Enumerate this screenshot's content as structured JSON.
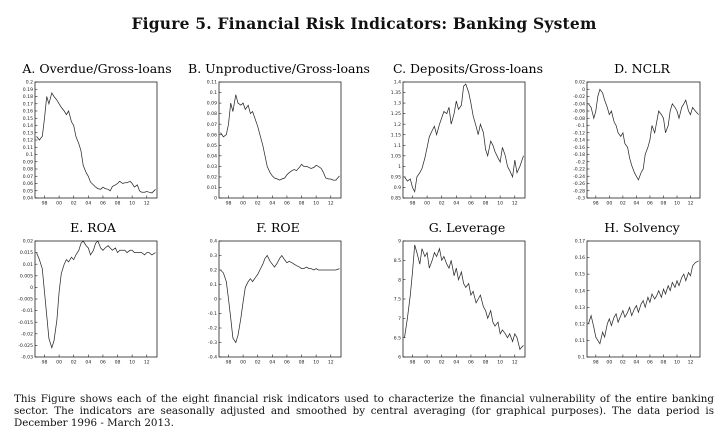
{
  "figure": {
    "title": "Figure 5. Financial Risk Indicators: Banking System",
    "caption": "This Figure shows each of the eight financial risk indicators used to characterize the financial vulnerability of the entire banking sector. The indicators are seasonally adjusted and smoothed by central averaging (for graphical purposes). The data period is December 1996 - March 2013."
  },
  "chart_data": [
    {
      "type": "line",
      "title": "A. Overdue/Gross-loans",
      "ylim": [
        0.04,
        0.2
      ],
      "yticks": [
        "0.2",
        "0.19",
        "0.18",
        "0.17",
        "0.16",
        "0.15",
        "0.14",
        "0.13",
        "0.12",
        "0.11",
        "0.1",
        "0.09",
        "0.08",
        "0.07",
        "0.06",
        "0.05",
        "0.04"
      ],
      "xticks": [
        "98",
        "00",
        "02",
        "04",
        "06",
        "08",
        "10",
        "12"
      ],
      "x": [
        1996.9,
        1997.3,
        1997.7,
        1998.0,
        1998.3,
        1998.6,
        1999.0,
        1999.3,
        1999.7,
        2000.0,
        2000.3,
        2000.7,
        2001.0,
        2001.3,
        2001.7,
        2002.0,
        2002.3,
        2002.7,
        2003.0,
        2003.3,
        2003.7,
        2004.0,
        2004.3,
        2004.7,
        2005.0,
        2005.3,
        2005.7,
        2006.0,
        2006.3,
        2006.7,
        2007.0,
        2007.3,
        2007.7,
        2008.0,
        2008.3,
        2008.7,
        2009.0,
        2009.3,
        2009.7,
        2010.0,
        2010.3,
        2010.7,
        2011.0,
        2011.3,
        2011.7,
        2012.0,
        2012.3,
        2012.7,
        2013.2
      ],
      "series": [
        {
          "values": [
            0.125,
            0.12,
            0.125,
            0.15,
            0.18,
            0.17,
            0.185,
            0.18,
            0.175,
            0.17,
            0.165,
            0.16,
            0.155,
            0.16,
            0.145,
            0.14,
            0.125,
            0.115,
            0.105,
            0.085,
            0.075,
            0.07,
            0.062,
            0.058,
            0.055,
            0.053,
            0.052,
            0.055,
            0.053,
            0.052,
            0.05,
            0.056,
            0.058,
            0.06,
            0.063,
            0.06,
            0.061,
            0.061,
            0.063,
            0.06,
            0.055,
            0.058,
            0.05,
            0.048,
            0.048,
            0.049,
            0.048,
            0.047,
            0.052
          ]
        }
      ]
    },
    {
      "type": "line",
      "title": "B. Unproductive/Gross-loans",
      "ylim": [
        0.0,
        0.11
      ],
      "yticks": [
        "0.11",
        "0.1",
        "0.09",
        "0.08",
        "0.07",
        "0.06",
        "0.05",
        "0.04",
        "0.03",
        "0.02",
        "0.01",
        "0"
      ],
      "xticks": [
        "98",
        "00",
        "02",
        "04",
        "06",
        "08",
        "10",
        "12"
      ],
      "x": [
        1996.9,
        1997.3,
        1997.7,
        1998.0,
        1998.3,
        1998.6,
        1999.0,
        1999.3,
        1999.7,
        2000.0,
        2000.3,
        2000.7,
        2001.0,
        2001.3,
        2001.7,
        2002.0,
        2002.3,
        2002.7,
        2003.0,
        2003.3,
        2003.7,
        2004.0,
        2004.3,
        2004.7,
        2005.0,
        2005.3,
        2005.7,
        2006.0,
        2006.3,
        2006.7,
        2007.0,
        2007.3,
        2007.7,
        2008.0,
        2008.3,
        2008.7,
        2009.0,
        2009.3,
        2009.7,
        2010.0,
        2010.3,
        2010.7,
        2011.0,
        2011.3,
        2011.7,
        2012.0,
        2012.3,
        2012.7,
        2013.2
      ],
      "series": [
        {
          "values": [
            0.062,
            0.058,
            0.06,
            0.07,
            0.09,
            0.082,
            0.098,
            0.09,
            0.088,
            0.09,
            0.084,
            0.088,
            0.08,
            0.082,
            0.074,
            0.068,
            0.06,
            0.05,
            0.04,
            0.03,
            0.024,
            0.021,
            0.019,
            0.018,
            0.017,
            0.018,
            0.019,
            0.022,
            0.024,
            0.026,
            0.027,
            0.026,
            0.029,
            0.032,
            0.03,
            0.03,
            0.029,
            0.028,
            0.029,
            0.031,
            0.03,
            0.028,
            0.024,
            0.019,
            0.018,
            0.018,
            0.017,
            0.017,
            0.021
          ]
        }
      ]
    },
    {
      "type": "line",
      "title": "C. Deposits/Gross-loans",
      "ylim": [
        0.85,
        1.4
      ],
      "yticks": [
        "1.4",
        "1.35",
        "1.3",
        "1.25",
        "1.2",
        "1.15",
        "1.1",
        "1.05",
        "1",
        "0.95",
        "0.9",
        "0.85"
      ],
      "xticks": [
        "98",
        "00",
        "02",
        "04",
        "06",
        "08",
        "10",
        "12"
      ],
      "x": [
        1996.9,
        1997.3,
        1997.7,
        1998.0,
        1998.3,
        1998.6,
        1999.0,
        1999.3,
        1999.7,
        2000.0,
        2000.3,
        2000.7,
        2001.0,
        2001.3,
        2001.7,
        2002.0,
        2002.3,
        2002.7,
        2003.0,
        2003.3,
        2003.7,
        2004.0,
        2004.3,
        2004.7,
        2005.0,
        2005.3,
        2005.7,
        2006.0,
        2006.3,
        2006.7,
        2007.0,
        2007.3,
        2007.7,
        2008.0,
        2008.3,
        2008.7,
        2009.0,
        2009.3,
        2009.7,
        2010.0,
        2010.3,
        2010.7,
        2011.0,
        2011.3,
        2011.7,
        2012.0,
        2012.3,
        2012.7,
        2013.2
      ],
      "series": [
        {
          "values": [
            0.95,
            0.93,
            0.94,
            0.9,
            0.88,
            0.95,
            0.97,
            0.99,
            1.04,
            1.09,
            1.14,
            1.17,
            1.19,
            1.15,
            1.2,
            1.23,
            1.26,
            1.25,
            1.28,
            1.2,
            1.25,
            1.31,
            1.27,
            1.29,
            1.38,
            1.39,
            1.35,
            1.3,
            1.24,
            1.19,
            1.15,
            1.2,
            1.16,
            1.08,
            1.05,
            1.12,
            1.1,
            1.07,
            1.04,
            1.02,
            1.09,
            1.05,
            1.0,
            0.98,
            0.95,
            1.03,
            0.97,
            1.0,
            1.05
          ]
        }
      ]
    },
    {
      "type": "line",
      "title": "D. NCLR",
      "ylim": [
        -0.3,
        0.02
      ],
      "yticks": [
        "0.02",
        "0",
        "-0.02",
        "-0.04",
        "-0.06",
        "-0.08",
        "-0.1",
        "-0.12",
        "-0.14",
        "-0.16",
        "-0.18",
        "-0.2",
        "-0.22",
        "-0.24",
        "-0.26",
        "-0.28",
        "-0.3"
      ],
      "xticks": [
        "98",
        "00",
        "02",
        "04",
        "06",
        "08",
        "10",
        "12"
      ],
      "x": [
        1996.9,
        1997.3,
        1997.7,
        1998.0,
        1998.3,
        1998.6,
        1999.0,
        1999.3,
        1999.7,
        2000.0,
        2000.3,
        2000.7,
        2001.0,
        2001.3,
        2001.7,
        2002.0,
        2002.3,
        2002.7,
        2003.0,
        2003.3,
        2003.7,
        2004.0,
        2004.3,
        2004.7,
        2005.0,
        2005.3,
        2005.7,
        2006.0,
        2006.3,
        2006.7,
        2007.0,
        2007.3,
        2007.7,
        2008.0,
        2008.3,
        2008.7,
        2009.0,
        2009.3,
        2009.7,
        2010.0,
        2010.3,
        2010.7,
        2011.0,
        2011.3,
        2011.7,
        2012.0,
        2012.3,
        2012.7,
        2013.2
      ],
      "series": [
        {
          "values": [
            -0.04,
            -0.05,
            -0.08,
            -0.06,
            -0.02,
            0.0,
            -0.01,
            -0.03,
            -0.05,
            -0.07,
            -0.06,
            -0.09,
            -0.1,
            -0.12,
            -0.13,
            -0.12,
            -0.15,
            -0.16,
            -0.19,
            -0.21,
            -0.23,
            -0.24,
            -0.25,
            -0.23,
            -0.22,
            -0.18,
            -0.16,
            -0.14,
            -0.1,
            -0.12,
            -0.09,
            -0.06,
            -0.07,
            -0.08,
            -0.12,
            -0.1,
            -0.06,
            -0.04,
            -0.05,
            -0.06,
            -0.08,
            -0.05,
            -0.04,
            -0.03,
            -0.06,
            -0.07,
            -0.05,
            -0.06,
            -0.07
          ]
        }
      ]
    },
    {
      "type": "line",
      "title": "E. ROA",
      "ylim": [
        -0.03,
        0.02
      ],
      "yticks": [
        "0.02",
        "0.015",
        "0.01",
        "0.005",
        "0",
        "-0.005",
        "-0.01",
        "-0.015",
        "-0.02",
        "-0.025",
        "-0.03"
      ],
      "xticks": [
        "98",
        "00",
        "02",
        "04",
        "06",
        "08",
        "10",
        "12"
      ],
      "x": [
        1996.9,
        1997.3,
        1997.7,
        1998.0,
        1998.3,
        1998.6,
        1999.0,
        1999.3,
        1999.7,
        2000.0,
        2000.3,
        2000.7,
        2001.0,
        2001.3,
        2001.7,
        2002.0,
        2002.3,
        2002.7,
        2003.0,
        2003.3,
        2003.7,
        2004.0,
        2004.3,
        2004.7,
        2005.0,
        2005.3,
        2005.7,
        2006.0,
        2006.3,
        2006.7,
        2007.0,
        2007.3,
        2007.7,
        2008.0,
        2008.3,
        2008.7,
        2009.0,
        2009.3,
        2009.7,
        2010.0,
        2010.3,
        2010.7,
        2011.0,
        2011.3,
        2011.7,
        2012.0,
        2012.3,
        2012.7,
        2013.2
      ],
      "series": [
        {
          "values": [
            0.015,
            0.012,
            0.008,
            -0.002,
            -0.012,
            -0.022,
            -0.026,
            -0.023,
            -0.014,
            -0.002,
            0.006,
            0.01,
            0.012,
            0.011,
            0.013,
            0.012,
            0.014,
            0.016,
            0.019,
            0.02,
            0.018,
            0.017,
            0.014,
            0.016,
            0.019,
            0.02,
            0.017,
            0.016,
            0.017,
            0.018,
            0.017,
            0.016,
            0.017,
            0.015,
            0.016,
            0.016,
            0.016,
            0.015,
            0.016,
            0.016,
            0.015,
            0.015,
            0.015,
            0.015,
            0.014,
            0.015,
            0.015,
            0.014,
            0.015
          ]
        }
      ]
    },
    {
      "type": "line",
      "title": "F. ROE",
      "ylim": [
        -0.4,
        0.4
      ],
      "yticks": [
        "0.4",
        "0.3",
        "0.2",
        "0.1",
        "0",
        "-0.1",
        "-0.2",
        "-0.3",
        "-0.4"
      ],
      "xticks": [
        "98",
        "00",
        "02",
        "04",
        "06",
        "08",
        "10",
        "12"
      ],
      "x": [
        1996.9,
        1997.3,
        1997.7,
        1998.0,
        1998.3,
        1998.6,
        1999.0,
        1999.3,
        1999.7,
        2000.0,
        2000.3,
        2000.7,
        2001.0,
        2001.3,
        2001.7,
        2002.0,
        2002.3,
        2002.7,
        2003.0,
        2003.3,
        2003.7,
        2004.0,
        2004.3,
        2004.7,
        2005.0,
        2005.3,
        2005.7,
        2006.0,
        2006.3,
        2006.7,
        2007.0,
        2007.3,
        2007.7,
        2008.0,
        2008.3,
        2008.7,
        2009.0,
        2009.3,
        2009.7,
        2010.0,
        2010.3,
        2010.7,
        2011.0,
        2011.3,
        2011.7,
        2012.0,
        2012.3,
        2012.7,
        2013.2
      ],
      "series": [
        {
          "values": [
            0.2,
            0.18,
            0.12,
            0.0,
            -0.13,
            -0.27,
            -0.3,
            -0.25,
            -0.13,
            -0.02,
            0.08,
            0.12,
            0.14,
            0.12,
            0.15,
            0.17,
            0.2,
            0.24,
            0.28,
            0.3,
            0.26,
            0.24,
            0.22,
            0.25,
            0.28,
            0.3,
            0.27,
            0.25,
            0.26,
            0.25,
            0.24,
            0.23,
            0.22,
            0.21,
            0.21,
            0.22,
            0.21,
            0.21,
            0.2,
            0.21,
            0.2,
            0.2,
            0.2,
            0.2,
            0.2,
            0.2,
            0.2,
            0.2,
            0.21
          ]
        }
      ]
    },
    {
      "type": "line",
      "title": "G. Leverage",
      "ylim": [
        6.0,
        9.0
      ],
      "yticks": [
        "9",
        "8.5",
        "8",
        "7.5",
        "7",
        "6.5",
        "6"
      ],
      "xticks": [
        "98",
        "00",
        "02",
        "04",
        "06",
        "08",
        "10",
        "12"
      ],
      "x": [
        1996.9,
        1997.3,
        1997.7,
        1998.0,
        1998.3,
        1998.6,
        1999.0,
        1999.3,
        1999.7,
        2000.0,
        2000.3,
        2000.7,
        2001.0,
        2001.3,
        2001.7,
        2002.0,
        2002.3,
        2002.7,
        2003.0,
        2003.3,
        2003.7,
        2004.0,
        2004.3,
        2004.7,
        2005.0,
        2005.3,
        2005.7,
        2006.0,
        2006.3,
        2006.7,
        2007.0,
        2007.3,
        2007.7,
        2008.0,
        2008.3,
        2008.7,
        2009.0,
        2009.3,
        2009.7,
        2010.0,
        2010.3,
        2010.7,
        2011.0,
        2011.3,
        2011.7,
        2012.0,
        2012.3,
        2012.7,
        2013.2
      ],
      "series": [
        {
          "values": [
            6.5,
            7.0,
            7.6,
            8.2,
            8.9,
            8.7,
            8.4,
            8.8,
            8.6,
            8.7,
            8.3,
            8.5,
            8.7,
            8.6,
            8.8,
            8.5,
            8.6,
            8.4,
            8.3,
            8.5,
            8.1,
            8.3,
            8.0,
            8.2,
            7.9,
            7.8,
            7.9,
            7.6,
            7.7,
            7.4,
            7.5,
            7.6,
            7.3,
            7.2,
            7.0,
            7.2,
            6.9,
            6.8,
            6.9,
            6.6,
            6.7,
            6.6,
            6.5,
            6.6,
            6.4,
            6.6,
            6.5,
            6.2,
            6.3
          ]
        }
      ]
    },
    {
      "type": "line",
      "title": "H. Solvency",
      "ylim": [
        0.1,
        0.17
      ],
      "yticks": [
        "0.17",
        "0.16",
        "0.15",
        "0.14",
        "0.13",
        "0.12",
        "0.11",
        "0.1"
      ],
      "xticks": [
        "98",
        "00",
        "02",
        "04",
        "06",
        "08",
        "10",
        "12"
      ],
      "x": [
        1996.9,
        1997.3,
        1997.7,
        1998.0,
        1998.3,
        1998.6,
        1999.0,
        1999.3,
        1999.7,
        2000.0,
        2000.3,
        2000.7,
        2001.0,
        2001.3,
        2001.7,
        2002.0,
        2002.3,
        2002.7,
        2003.0,
        2003.3,
        2003.7,
        2004.0,
        2004.3,
        2004.7,
        2005.0,
        2005.3,
        2005.7,
        2006.0,
        2006.3,
        2006.7,
        2007.0,
        2007.3,
        2007.7,
        2008.0,
        2008.3,
        2008.7,
        2009.0,
        2009.3,
        2009.7,
        2010.0,
        2010.3,
        2010.7,
        2011.0,
        2011.3,
        2011.7,
        2012.0,
        2012.3,
        2012.7,
        2013.2
      ],
      "series": [
        {
          "values": [
            0.12,
            0.125,
            0.118,
            0.112,
            0.11,
            0.108,
            0.115,
            0.112,
            0.12,
            0.123,
            0.119,
            0.124,
            0.126,
            0.121,
            0.125,
            0.128,
            0.124,
            0.127,
            0.13,
            0.125,
            0.129,
            0.131,
            0.127,
            0.132,
            0.134,
            0.13,
            0.136,
            0.133,
            0.138,
            0.135,
            0.137,
            0.14,
            0.136,
            0.141,
            0.138,
            0.143,
            0.14,
            0.145,
            0.142,
            0.146,
            0.143,
            0.148,
            0.15,
            0.146,
            0.151,
            0.149,
            0.155,
            0.157,
            0.158
          ]
        }
      ]
    }
  ]
}
